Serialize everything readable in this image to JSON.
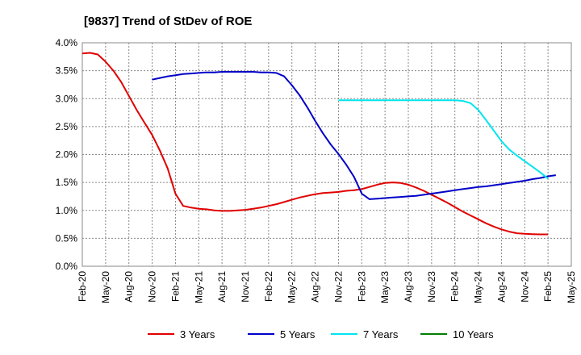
{
  "chart_data": {
    "type": "line",
    "title": "[9837]  Trend of StDev of ROE",
    "xlabel": "",
    "ylabel": "",
    "ylim": [
      0,
      4.0
    ],
    "y_ticks": [
      "0.0%",
      "0.5%",
      "1.0%",
      "1.5%",
      "2.0%",
      "2.5%",
      "3.0%",
      "3.5%",
      "4.0%"
    ],
    "x_ticks": [
      "Feb-20",
      "May-20",
      "Aug-20",
      "Nov-20",
      "Feb-21",
      "May-21",
      "Aug-21",
      "Nov-21",
      "Feb-22",
      "May-22",
      "Aug-22",
      "Nov-22",
      "Feb-23",
      "May-23",
      "Aug-23",
      "Nov-23",
      "Feb-24",
      "May-24",
      "Aug-24",
      "Nov-24",
      "Feb-25",
      "May-25"
    ],
    "grid": true,
    "legend_position": "bottom",
    "series": [
      {
        "name": "3 Years",
        "color": "#e00000",
        "points": [
          [
            "2020-02",
            3.81
          ],
          [
            "2020-03",
            3.82
          ],
          [
            "2020-04",
            3.79
          ],
          [
            "2020-05",
            3.66
          ],
          [
            "2020-06",
            3.5
          ],
          [
            "2020-07",
            3.3
          ],
          [
            "2020-08",
            3.05
          ],
          [
            "2020-09",
            2.8
          ],
          [
            "2020-10",
            2.57
          ],
          [
            "2020-11",
            2.35
          ],
          [
            "2020-12",
            2.07
          ],
          [
            "2021-01",
            1.75
          ],
          [
            "2021-02",
            1.3
          ],
          [
            "2021-03",
            1.08
          ],
          [
            "2021-04",
            1.05
          ],
          [
            "2021-05",
            1.03
          ],
          [
            "2021-06",
            1.02
          ],
          [
            "2021-07",
            1.0
          ],
          [
            "2021-08",
            0.99
          ],
          [
            "2021-09",
            0.99
          ],
          [
            "2021-10",
            1.0
          ],
          [
            "2021-11",
            1.01
          ],
          [
            "2021-12",
            1.03
          ],
          [
            "2022-01",
            1.05
          ],
          [
            "2022-02",
            1.08
          ],
          [
            "2022-03",
            1.11
          ],
          [
            "2022-04",
            1.15
          ],
          [
            "2022-05",
            1.19
          ],
          [
            "2022-06",
            1.23
          ],
          [
            "2022-07",
            1.26
          ],
          [
            "2022-08",
            1.29
          ],
          [
            "2022-09",
            1.31
          ],
          [
            "2022-10",
            1.32
          ],
          [
            "2022-11",
            1.33
          ],
          [
            "2022-12",
            1.35
          ],
          [
            "2023-01",
            1.36
          ],
          [
            "2023-02",
            1.38
          ],
          [
            "2023-03",
            1.42
          ],
          [
            "2023-04",
            1.46
          ],
          [
            "2023-05",
            1.49
          ],
          [
            "2023-06",
            1.5
          ],
          [
            "2023-07",
            1.49
          ],
          [
            "2023-08",
            1.46
          ],
          [
            "2023-09",
            1.41
          ],
          [
            "2023-10",
            1.35
          ],
          [
            "2023-11",
            1.28
          ],
          [
            "2023-12",
            1.21
          ],
          [
            "2024-01",
            1.14
          ],
          [
            "2024-02",
            1.06
          ],
          [
            "2024-03",
            0.98
          ],
          [
            "2024-04",
            0.91
          ],
          [
            "2024-05",
            0.84
          ],
          [
            "2024-06",
            0.77
          ],
          [
            "2024-07",
            0.71
          ],
          [
            "2024-08",
            0.66
          ],
          [
            "2024-09",
            0.62
          ],
          [
            "2024-10",
            0.59
          ],
          [
            "2024-11",
            0.58
          ],
          [
            "2024-12",
            0.575
          ],
          [
            "2025-01",
            0.57
          ],
          [
            "2025-02",
            0.57
          ]
        ]
      },
      {
        "name": "5 Years",
        "color": "#0000c8",
        "points": [
          [
            "2020-11",
            3.34
          ],
          [
            "2020-12",
            3.37
          ],
          [
            "2021-01",
            3.4
          ],
          [
            "2021-02",
            3.42
          ],
          [
            "2021-03",
            3.44
          ],
          [
            "2021-04",
            3.45
          ],
          [
            "2021-05",
            3.46
          ],
          [
            "2021-06",
            3.47
          ],
          [
            "2021-07",
            3.47
          ],
          [
            "2021-08",
            3.48
          ],
          [
            "2021-09",
            3.48
          ],
          [
            "2021-10",
            3.48
          ],
          [
            "2021-11",
            3.48
          ],
          [
            "2021-12",
            3.48
          ],
          [
            "2022-01",
            3.47
          ],
          [
            "2022-02",
            3.47
          ],
          [
            "2022-03",
            3.46
          ],
          [
            "2022-04",
            3.4
          ],
          [
            "2022-05",
            3.24
          ],
          [
            "2022-06",
            3.06
          ],
          [
            "2022-07",
            2.84
          ],
          [
            "2022-08",
            2.6
          ],
          [
            "2022-09",
            2.38
          ],
          [
            "2022-10",
            2.18
          ],
          [
            "2022-11",
            2.01
          ],
          [
            "2022-12",
            1.82
          ],
          [
            "2023-01",
            1.6
          ],
          [
            "2023-02",
            1.3
          ],
          [
            "2023-03",
            1.2
          ],
          [
            "2023-04",
            1.21
          ],
          [
            "2023-05",
            1.22
          ],
          [
            "2023-06",
            1.23
          ],
          [
            "2023-07",
            1.24
          ],
          [
            "2023-08",
            1.25
          ],
          [
            "2023-09",
            1.26
          ],
          [
            "2023-10",
            1.28
          ],
          [
            "2023-11",
            1.3
          ],
          [
            "2023-12",
            1.32
          ],
          [
            "2024-01",
            1.34
          ],
          [
            "2024-02",
            1.36
          ],
          [
            "2024-03",
            1.38
          ],
          [
            "2024-04",
            1.4
          ],
          [
            "2024-05",
            1.42
          ],
          [
            "2024-06",
            1.43
          ],
          [
            "2024-07",
            1.45
          ],
          [
            "2024-08",
            1.47
          ],
          [
            "2024-09",
            1.49
          ],
          [
            "2024-10",
            1.51
          ],
          [
            "2024-11",
            1.53
          ],
          [
            "2024-12",
            1.56
          ],
          [
            "2025-01",
            1.58
          ],
          [
            "2025-02",
            1.61
          ],
          [
            "2025-03",
            1.63
          ]
        ]
      },
      {
        "name": "7 Years",
        "color": "#00e5ee",
        "points": [
          [
            "2022-11",
            2.97
          ],
          [
            "2022-12",
            2.97
          ],
          [
            "2023-01",
            2.97
          ],
          [
            "2023-02",
            2.97
          ],
          [
            "2023-03",
            2.97
          ],
          [
            "2023-04",
            2.97
          ],
          [
            "2023-05",
            2.97
          ],
          [
            "2023-06",
            2.97
          ],
          [
            "2023-07",
            2.97
          ],
          [
            "2023-08",
            2.97
          ],
          [
            "2023-09",
            2.97
          ],
          [
            "2023-10",
            2.97
          ],
          [
            "2023-11",
            2.97
          ],
          [
            "2023-12",
            2.97
          ],
          [
            "2024-01",
            2.97
          ],
          [
            "2024-02",
            2.97
          ],
          [
            "2024-03",
            2.96
          ],
          [
            "2024-04",
            2.92
          ],
          [
            "2024-05",
            2.8
          ],
          [
            "2024-06",
            2.62
          ],
          [
            "2024-07",
            2.43
          ],
          [
            "2024-08",
            2.24
          ],
          [
            "2024-09",
            2.09
          ],
          [
            "2024-10",
            1.98
          ],
          [
            "2024-11",
            1.88
          ],
          [
            "2024-12",
            1.78
          ],
          [
            "2025-01",
            1.68
          ],
          [
            "2025-02",
            1.57
          ]
        ]
      },
      {
        "name": "10 Years",
        "color": "#008000",
        "points": []
      }
    ]
  }
}
